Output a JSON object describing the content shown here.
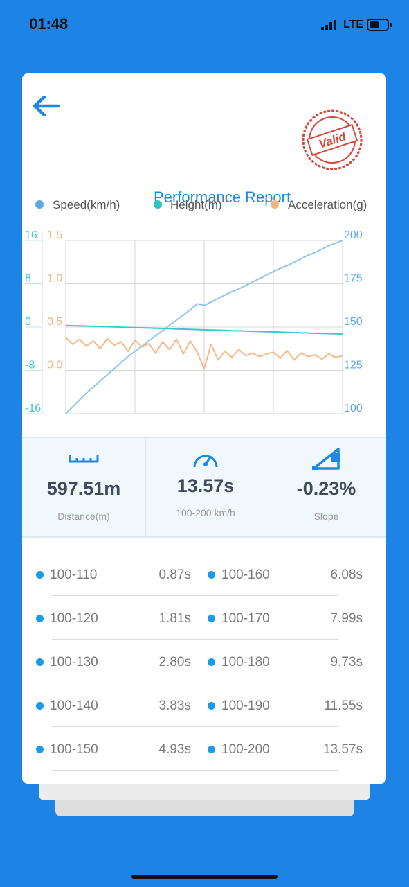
{
  "status_bar": {
    "time": "01:48",
    "network": "LTE"
  },
  "header": {
    "title": "Performance Report",
    "stamp": "Valid"
  },
  "chart_data": {
    "type": "line",
    "series": [
      {
        "name": "Speed(km/h)",
        "color": "#8ec5ef",
        "legend_color": "#5aa9e6",
        "axis": "y2",
        "values": [
          100,
          104,
          108,
          112,
          115.5,
          119,
          122.5,
          126,
          129.5,
          133,
          136,
          139,
          142,
          145,
          148,
          151,
          154,
          157,
          160,
          163.5,
          162.5,
          164.5,
          166.5,
          168.5,
          170.5,
          172,
          174,
          176,
          178,
          180,
          182,
          184,
          185.5,
          187.5,
          189.5,
          191.5,
          193,
          195,
          197,
          198.5,
          200
        ]
      },
      {
        "name": "Height(m)",
        "color": "#3cc8c8",
        "legend_color": "#2ec4c4",
        "axis": "y",
        "values": [
          0.3,
          0.26,
          0.22,
          0.18,
          0.14,
          0.1,
          0.06,
          0.02,
          -0.02,
          -0.06,
          -0.1,
          -0.14,
          -0.18,
          -0.22,
          -0.26,
          -0.3,
          -0.34,
          -0.38,
          -0.42,
          -0.46,
          -0.5,
          -0.54,
          -0.58,
          -0.62,
          -0.66,
          -0.7,
          -0.74,
          -0.78,
          -0.82,
          -0.86,
          -0.9,
          -0.94,
          -0.98,
          -1.02,
          -1.06,
          -1.1,
          -1.14,
          -1.18,
          -1.22,
          -1.26,
          -1.3
        ]
      },
      {
        "name": "Acceleration(g)",
        "color": "#f6b985",
        "legend_color": "#f5b47e",
        "axis": "y3",
        "values": [
          0.38,
          0.3,
          0.36,
          0.28,
          0.34,
          0.25,
          0.37,
          0.29,
          0.33,
          0.22,
          0.35,
          0.27,
          0.31,
          0.2,
          0.33,
          0.24,
          0.36,
          0.19,
          0.34,
          0.21,
          0.02,
          0.3,
          0.12,
          0.22,
          0.15,
          0.24,
          0.17,
          0.2,
          0.16,
          0.19,
          0.21,
          0.14,
          0.23,
          0.12,
          0.2,
          0.16,
          0.18,
          0.13,
          0.19,
          0.15,
          0.17
        ]
      }
    ],
    "ylim": [
      -16,
      16
    ],
    "yticks": [
      16,
      8,
      0,
      -8,
      -16
    ],
    "ycolor": "#3cc8c8",
    "y3lim": [
      -0.5,
      1.5
    ],
    "y3ticks": [
      1.5,
      {
        "value": 1,
        "label": "1.0"
      },
      0.5,
      {
        "value": 0,
        "label": "0.0"
      }
    ],
    "y3color": "#f5b47e",
    "y2lim": [
      100,
      200
    ],
    "y2ticks": [
      200,
      175,
      150,
      125,
      100
    ],
    "y2color": "#5aa9e6",
    "grid": true
  },
  "stats": [
    {
      "value": "597.51m",
      "label": "Distance(m)"
    },
    {
      "value": "13.57s",
      "label": "100-200 km/h"
    },
    {
      "value": "-0.23%",
      "label": "Slope"
    }
  ],
  "splits": [
    {
      "range": "100-110",
      "time": "0.87s"
    },
    {
      "range": "100-120",
      "time": "1.81s"
    },
    {
      "range": "100-130",
      "time": "2.80s"
    },
    {
      "range": "100-140",
      "time": "3.83s"
    },
    {
      "range": "100-150",
      "time": "4.93s"
    },
    {
      "range": "100-160",
      "time": "6.08s"
    },
    {
      "range": "100-170",
      "time": "7.99s"
    },
    {
      "range": "100-180",
      "time": "9.73s"
    },
    {
      "range": "100-190",
      "time": "11.55s"
    },
    {
      "range": "100-200",
      "time": "13.57s"
    }
  ]
}
